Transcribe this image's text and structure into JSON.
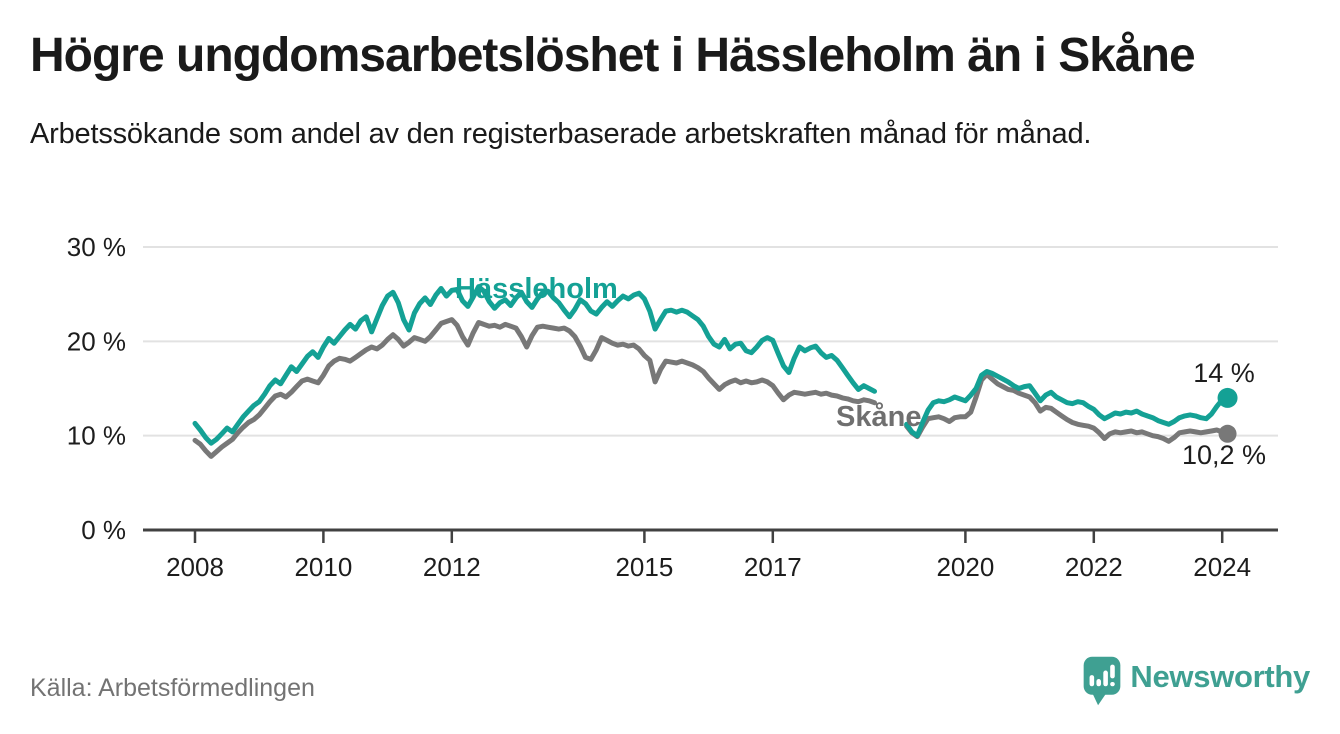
{
  "header": {
    "title": "Högre ungdomsarbetslöshet i Hässleholm än i Skåne",
    "subtitle": "Arbetssökande som andel av den registerbaserade arbetskraften månad för månad."
  },
  "footer": {
    "source": "Källa: Arbetsförmedlingen",
    "brand": "Newsworthy"
  },
  "colors": {
    "hassleholm": "#14a195",
    "skane": "#787878",
    "skane_label": "#6f6f6f",
    "grid": "#e2e2e2",
    "axis": "#414141",
    "text": "#1d1d1d",
    "muted": "#737373",
    "brand": "#3fa092",
    "background": "#ffffff"
  },
  "chart_data": {
    "type": "line",
    "x_unit": "month",
    "x_start": "2008-01",
    "x_end": "2024-02",
    "x_tick_years": [
      2008,
      2010,
      2012,
      2015,
      2017,
      2020,
      2022,
      2024
    ],
    "y_ticks": [
      {
        "value": 0,
        "label": "0 %"
      },
      {
        "value": 10,
        "label": "10 %"
      },
      {
        "value": 20,
        "label": "20 %"
      },
      {
        "value": 30,
        "label": "30 %"
      }
    ],
    "ylim": [
      0,
      30
    ],
    "grid": "horizontal",
    "legend_position": "inline-labels",
    "series": [
      {
        "name": "Hässleholm",
        "color": "#14a195",
        "end_label": "14 %",
        "last_value": 14.0,
        "values": [
          11.3,
          10.6,
          9.8,
          9.2,
          9.6,
          10.2,
          10.8,
          10.4,
          11.2,
          12.0,
          12.6,
          13.2,
          13.6,
          14.4,
          15.3,
          15.9,
          15.5,
          16.4,
          17.3,
          16.8,
          17.6,
          18.4,
          18.9,
          18.3,
          19.4,
          20.3,
          19.8,
          20.5,
          21.2,
          21.8,
          21.3,
          22.2,
          22.6,
          21.0,
          22.4,
          23.8,
          24.8,
          25.2,
          24.1,
          22.3,
          21.2,
          23.0,
          24.0,
          24.6,
          23.9,
          24.9,
          25.6,
          24.8,
          25.4,
          25.5,
          24.3,
          23.7,
          24.7,
          25.8,
          25.3,
          24.2,
          23.5,
          24.1,
          24.4,
          23.8,
          24.6,
          25.2,
          24.2,
          23.6,
          24.5,
          25.2,
          25.3,
          24.6,
          24.1,
          23.3,
          22.6,
          23.4,
          24.4,
          24.0,
          23.2,
          22.9,
          23.6,
          24.2,
          23.7,
          24.3,
          24.8,
          24.5,
          24.9,
          25.1,
          24.5,
          23.2,
          21.3,
          22.3,
          23.2,
          23.3,
          23.1,
          23.3,
          23.1,
          22.7,
          22.3,
          21.6,
          20.5,
          19.7,
          19.4,
          20.2,
          19.2,
          19.7,
          19.8,
          19.0,
          18.8,
          19.4,
          20.1,
          20.4,
          20.1,
          18.7,
          17.4,
          16.7,
          18.2,
          19.4,
          19.0,
          19.3,
          19.5,
          18.8,
          18.3,
          18.5,
          18.0,
          17.2,
          16.4,
          15.6,
          14.9,
          15.3,
          15.0,
          14.7,
          null,
          null,
          null,
          null,
          null,
          11.2,
          10.4,
          10.0,
          11.4,
          12.7,
          13.5,
          13.7,
          13.6,
          13.8,
          14.1,
          13.9,
          13.7,
          14.3,
          15.0,
          16.4,
          16.8,
          16.6,
          16.3,
          16.0,
          15.7,
          15.3,
          15.0,
          15.2,
          15.3,
          14.5,
          13.7,
          14.3,
          14.6,
          14.1,
          13.8,
          13.5,
          13.4,
          13.6,
          13.5,
          13.1,
          12.8,
          12.2,
          11.8,
          12.1,
          12.4,
          12.3,
          12.5,
          12.4,
          12.6,
          12.3,
          12.1,
          11.9,
          11.6,
          11.4,
          11.2,
          11.5,
          11.9,
          12.1,
          12.2,
          12.1,
          11.9,
          11.8,
          12.3,
          13.1,
          13.8,
          14.0
        ]
      },
      {
        "name": "Skåne",
        "color": "#787878",
        "end_label": "10,2 %",
        "last_value": 10.2,
        "values": [
          9.5,
          9.1,
          8.4,
          7.8,
          8.3,
          8.8,
          9.2,
          9.6,
          10.3,
          10.9,
          11.4,
          11.7,
          12.2,
          12.9,
          13.6,
          14.2,
          14.4,
          14.1,
          14.6,
          15.2,
          15.8,
          16.0,
          15.8,
          15.6,
          16.4,
          17.4,
          17.9,
          18.2,
          18.1,
          17.9,
          18.3,
          18.7,
          19.1,
          19.4,
          19.2,
          19.6,
          20.2,
          20.7,
          20.2,
          19.5,
          19.9,
          20.4,
          20.2,
          20.0,
          20.5,
          21.2,
          21.9,
          22.1,
          22.3,
          21.7,
          20.5,
          19.6,
          20.9,
          22.0,
          21.8,
          21.6,
          21.7,
          21.5,
          21.8,
          21.6,
          21.4,
          20.5,
          19.4,
          20.6,
          21.5,
          21.6,
          21.5,
          21.4,
          21.3,
          21.4,
          21.1,
          20.5,
          19.5,
          18.3,
          18.1,
          19.1,
          20.4,
          20.1,
          19.8,
          19.6,
          19.7,
          19.5,
          19.6,
          19.2,
          18.5,
          18.0,
          15.7,
          17.0,
          17.9,
          17.8,
          17.7,
          17.9,
          17.7,
          17.5,
          17.2,
          16.8,
          16.1,
          15.5,
          14.9,
          15.4,
          15.7,
          15.9,
          15.6,
          15.8,
          15.6,
          15.7,
          15.9,
          15.7,
          15.3,
          14.5,
          13.8,
          14.3,
          14.6,
          14.5,
          14.4,
          14.5,
          14.6,
          14.4,
          14.5,
          14.3,
          14.2,
          14.0,
          13.9,
          13.7,
          13.6,
          13.8,
          13.7,
          13.5,
          null,
          null,
          null,
          null,
          null,
          11.0,
          10.3,
          9.9,
          10.9,
          11.8,
          11.9,
          12.0,
          11.8,
          11.5,
          11.9,
          12.0,
          12.0,
          12.5,
          14.1,
          15.9,
          16.5,
          16.0,
          15.5,
          15.2,
          14.9,
          14.8,
          14.5,
          14.3,
          14.1,
          13.5,
          12.6,
          13.0,
          12.9,
          12.5,
          12.1,
          11.7,
          11.4,
          11.2,
          11.1,
          11.0,
          10.8,
          10.3,
          9.7,
          10.2,
          10.4,
          10.3,
          10.4,
          10.5,
          10.3,
          10.4,
          10.2,
          10.0,
          9.9,
          9.7,
          9.4,
          9.8,
          10.3,
          10.4,
          10.5,
          10.4,
          10.3,
          10.4,
          10.5,
          10.6,
          10.4,
          10.2
        ]
      }
    ]
  }
}
